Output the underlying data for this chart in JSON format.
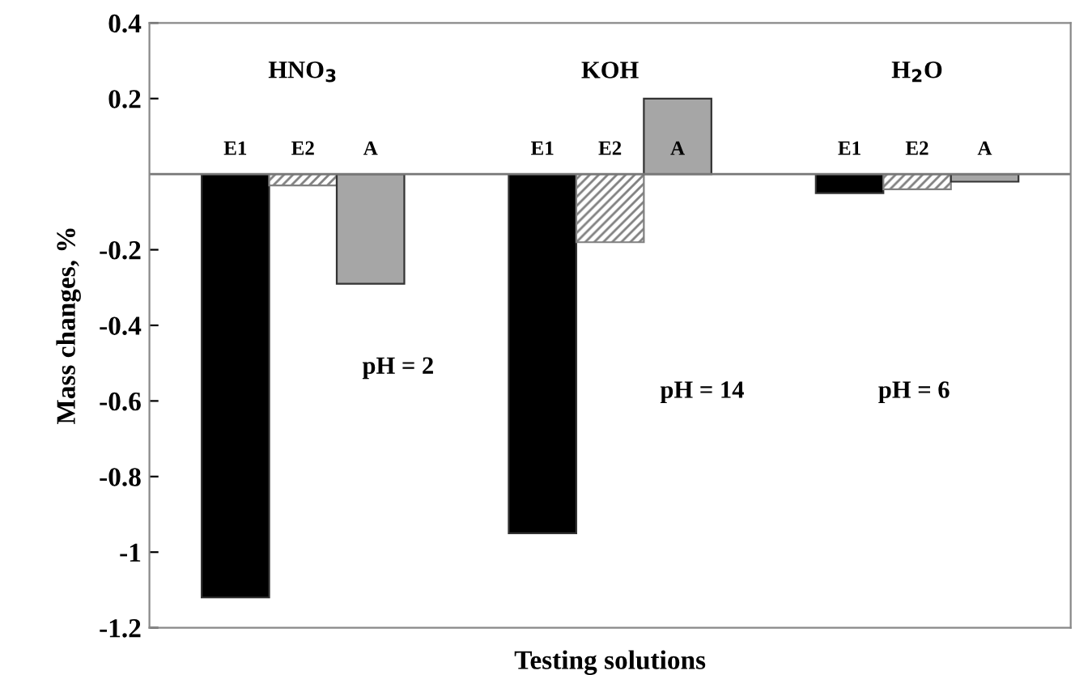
{
  "chart_data": {
    "type": "bar",
    "xlabel": "Testing solutions",
    "ylabel": "Mass changes, %",
    "categories": [
      "HNO$_{3}$",
      "KOH",
      "H$_{2}$O"
    ],
    "series": [
      {
        "name": "E1",
        "color": "#000000",
        "values": [
          -1.12,
          -0.95,
          -0.05
        ]
      },
      {
        "name": "E2",
        "color": "#808080",
        "values": [
          -0.03,
          -0.18,
          -0.04
        ]
      },
      {
        "name": "A",
        "color": "#a6a6a6",
        "values": [
          -0.29,
          0.2,
          -0.02
        ]
      }
    ],
    "annotations": [
      "pH = 2",
      "pH = 14",
      "pH = 6"
    ],
    "ylim": [
      -1.2,
      0.4
    ],
    "yticks": [
      0.4,
      0.2,
      -0.2,
      -0.4,
      -0.6,
      -0.8,
      -1,
      -1.2
    ],
    "tick_labels": "y",
    "grid": false,
    "legend": false
  }
}
